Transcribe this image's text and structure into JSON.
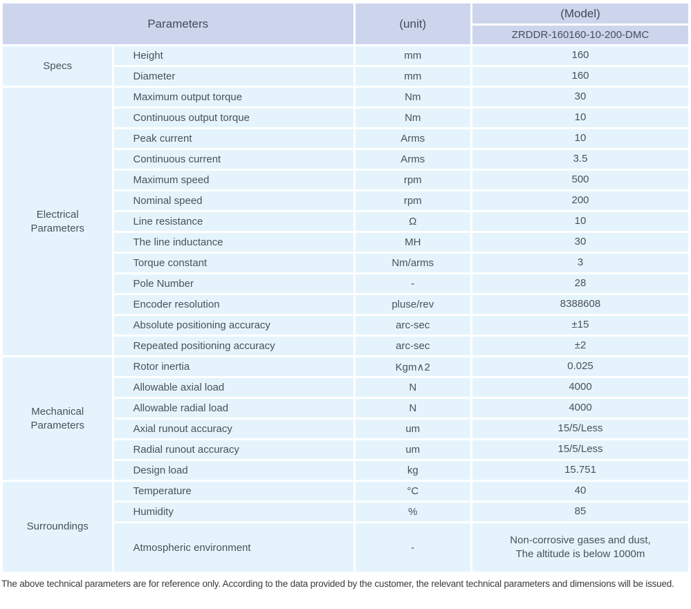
{
  "table": {
    "header": {
      "parameters_label": "Parameters",
      "unit_label": "(unit)",
      "model_label": "(Model)",
      "model_number": "ZRDDR-160160-10-200-DMC"
    },
    "sections": [
      {
        "group": "Specs",
        "rows": [
          {
            "name": "Height",
            "unit": "mm",
            "value": "160"
          },
          {
            "name": "Diameter",
            "unit": "mm",
            "value": "160"
          }
        ]
      },
      {
        "group": "Electrical Parameters",
        "rows": [
          {
            "name": "Maximum output torque",
            "unit": "Nm",
            "value": "30"
          },
          {
            "name": "Continuous output torque",
            "unit": "Nm",
            "value": "10"
          },
          {
            "name": "Peak current",
            "unit": "Arms",
            "value": "10"
          },
          {
            "name": "Continuous current",
            "unit": "Arms",
            "value": "3.5"
          },
          {
            "name": "Maximum speed",
            "unit": "rpm",
            "value": "500"
          },
          {
            "name": "Nominal speed",
            "unit": "rpm",
            "value": "200"
          },
          {
            "name": "Line resistance",
            "unit": "Ω",
            "value": "10"
          },
          {
            "name": "The line inductance",
            "unit": "MH",
            "value": "30"
          },
          {
            "name": "Torque constant",
            "unit": "Nm/arms",
            "value": "3"
          },
          {
            "name": "Pole Number",
            "unit": "-",
            "value": "28"
          },
          {
            "name": "Encoder resolution",
            "unit": "pluse/rev",
            "value": "8388608"
          },
          {
            "name": "Absolute positioning accuracy",
            "unit": "arc-sec",
            "value": "±15"
          },
          {
            "name": "Repeated positioning accuracy",
            "unit": "arc-sec",
            "value": "±2"
          }
        ]
      },
      {
        "group": "Mechanical Parameters",
        "rows": [
          {
            "name": "Rotor inertia",
            "unit": "Kgm∧2",
            "value": "0.025"
          },
          {
            "name": "Allowable axial load",
            "unit": "N",
            "value": "4000"
          },
          {
            "name": "Allowable radial load",
            "unit": "N",
            "value": "4000"
          },
          {
            "name": "Axial runout accuracy",
            "unit": "um",
            "value": "15/5/Less"
          },
          {
            "name": "Radial runout accuracy",
            "unit": "um",
            "value": "15/5/Less"
          },
          {
            "name": "Design load",
            "unit": "kg",
            "value": "15.751"
          }
        ]
      },
      {
        "group": "Surroundings",
        "rows": [
          {
            "name": "Temperature",
            "unit": "°C",
            "value": "40"
          },
          {
            "name": "Humidity",
            "unit": "%",
            "value": "85"
          },
          {
            "name": "Atmospheric environment",
            "unit": "-",
            "value": "Non-corrosive gases and dust,\nThe altitude is below 1000m",
            "tall": true
          }
        ]
      }
    ]
  },
  "footer": {
    "note": "The above technical parameters are for reference only. According to the data provided by the customer, the relevant technical parameters and dimensions will be issued."
  },
  "colors": {
    "header_bg": "#ccd5ec",
    "cell_bg": "#e5f4fc",
    "text": "#4a5058",
    "separator": "#ffffff"
  }
}
